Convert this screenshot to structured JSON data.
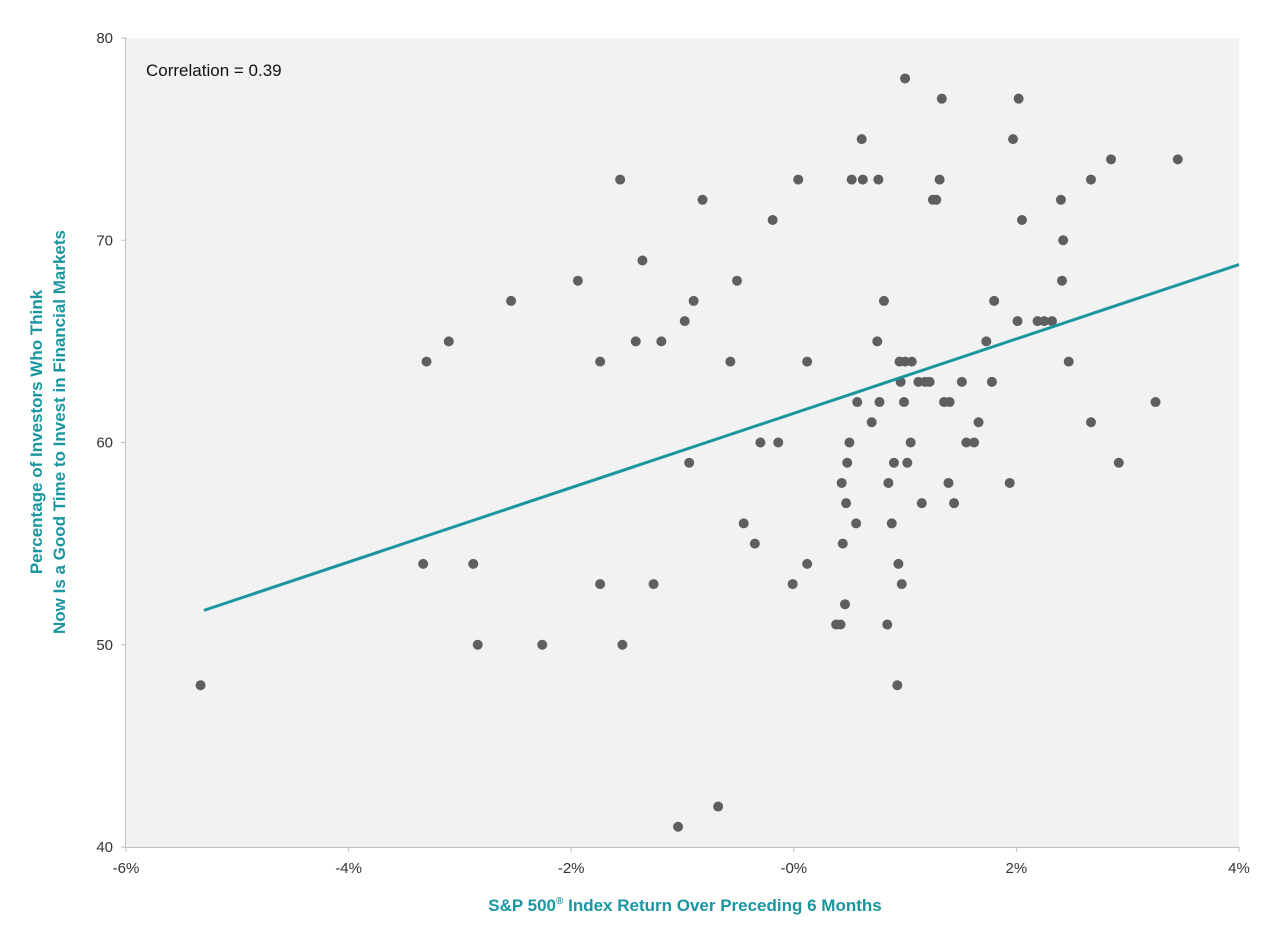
{
  "chart_data": {
    "type": "scatter",
    "xlabel": "S&P 500",
    "xlabel_sup": "®",
    "xlabel_rest": " Index Return Over Preceding 6 Months",
    "ylabel_line1": "Percentage of Investors Who Think",
    "ylabel_line2": "Now Is a Good Time to Invest in Financial Markets",
    "annotation": "Correlation = 0.39",
    "xlim": [
      -6,
      4
    ],
    "ylim": [
      40,
      80
    ],
    "x_ticks": [
      -6,
      -4,
      -2,
      0,
      2,
      4
    ],
    "x_tick_labels": [
      "-6%",
      "-4%",
      "-2%",
      "-0%",
      "2%",
      "4%"
    ],
    "y_ticks": [
      40,
      50,
      60,
      70,
      80
    ],
    "y_tick_labels": [
      "40",
      "50",
      "60",
      "70",
      "80"
    ],
    "grid": false,
    "colors": {
      "points": "#5f5f5f",
      "trend": "#1a96a0",
      "label": "#1a96a0",
      "plot_bg": "#f2f2f2",
      "axis": "#bfbfbf"
    },
    "trendline": {
      "x": [
        -5.3,
        4.0
      ],
      "y": [
        51.7,
        68.8
      ]
    },
    "points": [
      {
        "x": -5.33,
        "y": 48
      },
      {
        "x": -3.33,
        "y": 54
      },
      {
        "x": -3.3,
        "y": 64
      },
      {
        "x": -3.1,
        "y": 65
      },
      {
        "x": -2.88,
        "y": 54
      },
      {
        "x": -2.84,
        "y": 50
      },
      {
        "x": -2.54,
        "y": 67
      },
      {
        "x": -2.26,
        "y": 50
      },
      {
        "x": -1.94,
        "y": 68
      },
      {
        "x": -1.74,
        "y": 64
      },
      {
        "x": -1.74,
        "y": 53
      },
      {
        "x": -1.56,
        "y": 73
      },
      {
        "x": -1.54,
        "y": 50
      },
      {
        "x": -1.42,
        "y": 65
      },
      {
        "x": -1.36,
        "y": 69
      },
      {
        "x": -1.26,
        "y": 53
      },
      {
        "x": -1.19,
        "y": 65
      },
      {
        "x": -1.04,
        "y": 41
      },
      {
        "x": -0.98,
        "y": 66
      },
      {
        "x": -0.94,
        "y": 59
      },
      {
        "x": -0.9,
        "y": 67
      },
      {
        "x": -0.82,
        "y": 72
      },
      {
        "x": -0.68,
        "y": 42
      },
      {
        "x": -0.57,
        "y": 64
      },
      {
        "x": -0.51,
        "y": 68
      },
      {
        "x": -0.45,
        "y": 56
      },
      {
        "x": -0.35,
        "y": 55
      },
      {
        "x": -0.3,
        "y": 60
      },
      {
        "x": -0.19,
        "y": 71
      },
      {
        "x": -0.14,
        "y": 60
      },
      {
        "x": -0.01,
        "y": 53
      },
      {
        "x": 0.04,
        "y": 73
      },
      {
        "x": 0.12,
        "y": 64
      },
      {
        "x": 0.12,
        "y": 54
      },
      {
        "x": 0.38,
        "y": 51
      },
      {
        "x": 0.42,
        "y": 51
      },
      {
        "x": 0.43,
        "y": 58
      },
      {
        "x": 0.44,
        "y": 55
      },
      {
        "x": 0.46,
        "y": 52
      },
      {
        "x": 0.47,
        "y": 57
      },
      {
        "x": 0.48,
        "y": 59
      },
      {
        "x": 0.5,
        "y": 60
      },
      {
        "x": 0.52,
        "y": 73
      },
      {
        "x": 0.56,
        "y": 56
      },
      {
        "x": 0.57,
        "y": 62
      },
      {
        "x": 0.61,
        "y": 75
      },
      {
        "x": 0.62,
        "y": 73
      },
      {
        "x": 0.7,
        "y": 61
      },
      {
        "x": 0.75,
        "y": 65
      },
      {
        "x": 0.76,
        "y": 73
      },
      {
        "x": 0.77,
        "y": 62
      },
      {
        "x": 0.81,
        "y": 67
      },
      {
        "x": 0.84,
        "y": 51
      },
      {
        "x": 0.85,
        "y": 58
      },
      {
        "x": 0.88,
        "y": 56
      },
      {
        "x": 0.9,
        "y": 59
      },
      {
        "x": 0.93,
        "y": 48
      },
      {
        "x": 0.94,
        "y": 54
      },
      {
        "x": 0.95,
        "y": 64
      },
      {
        "x": 0.96,
        "y": 63
      },
      {
        "x": 0.97,
        "y": 53
      },
      {
        "x": 0.99,
        "y": 62
      },
      {
        "x": 1.0,
        "y": 64
      },
      {
        "x": 1.0,
        "y": 78
      },
      {
        "x": 1.02,
        "y": 59
      },
      {
        "x": 1.05,
        "y": 60
      },
      {
        "x": 1.06,
        "y": 64
      },
      {
        "x": 1.12,
        "y": 63
      },
      {
        "x": 1.15,
        "y": 57
      },
      {
        "x": 1.18,
        "y": 63
      },
      {
        "x": 1.22,
        "y": 63
      },
      {
        "x": 1.25,
        "y": 72
      },
      {
        "x": 1.28,
        "y": 72
      },
      {
        "x": 1.31,
        "y": 73
      },
      {
        "x": 1.33,
        "y": 77
      },
      {
        "x": 1.35,
        "y": 62
      },
      {
        "x": 1.39,
        "y": 58
      },
      {
        "x": 1.4,
        "y": 62
      },
      {
        "x": 1.44,
        "y": 57
      },
      {
        "x": 1.51,
        "y": 63
      },
      {
        "x": 1.55,
        "y": 60
      },
      {
        "x": 1.62,
        "y": 60
      },
      {
        "x": 1.66,
        "y": 61
      },
      {
        "x": 1.73,
        "y": 65
      },
      {
        "x": 1.78,
        "y": 63
      },
      {
        "x": 1.8,
        "y": 67
      },
      {
        "x": 1.94,
        "y": 58
      },
      {
        "x": 1.97,
        "y": 75
      },
      {
        "x": 2.01,
        "y": 66
      },
      {
        "x": 2.02,
        "y": 77
      },
      {
        "x": 2.05,
        "y": 71
      },
      {
        "x": 2.19,
        "y": 66
      },
      {
        "x": 2.25,
        "y": 66
      },
      {
        "x": 2.32,
        "y": 66
      },
      {
        "x": 2.4,
        "y": 72
      },
      {
        "x": 2.41,
        "y": 68
      },
      {
        "x": 2.42,
        "y": 70
      },
      {
        "x": 2.47,
        "y": 64
      },
      {
        "x": 2.67,
        "y": 73
      },
      {
        "x": 2.67,
        "y": 61
      },
      {
        "x": 2.85,
        "y": 74
      },
      {
        "x": 2.92,
        "y": 59
      },
      {
        "x": 3.25,
        "y": 62
      },
      {
        "x": 3.45,
        "y": 74
      }
    ]
  }
}
